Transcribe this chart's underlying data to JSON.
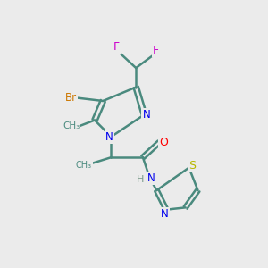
{
  "background_color": "#ebebeb",
  "atom_colors": {
    "C": "#4a8a7e",
    "N": "#0000ee",
    "O": "#ff0000",
    "S": "#b8b800",
    "Br": "#cc7700",
    "F": "#cc00cc",
    "H": "#7a9a8a"
  },
  "bond_color": "#4a8a7e",
  "figsize": [
    3.0,
    3.0
  ],
  "dpi": 100,
  "lw": 1.8
}
